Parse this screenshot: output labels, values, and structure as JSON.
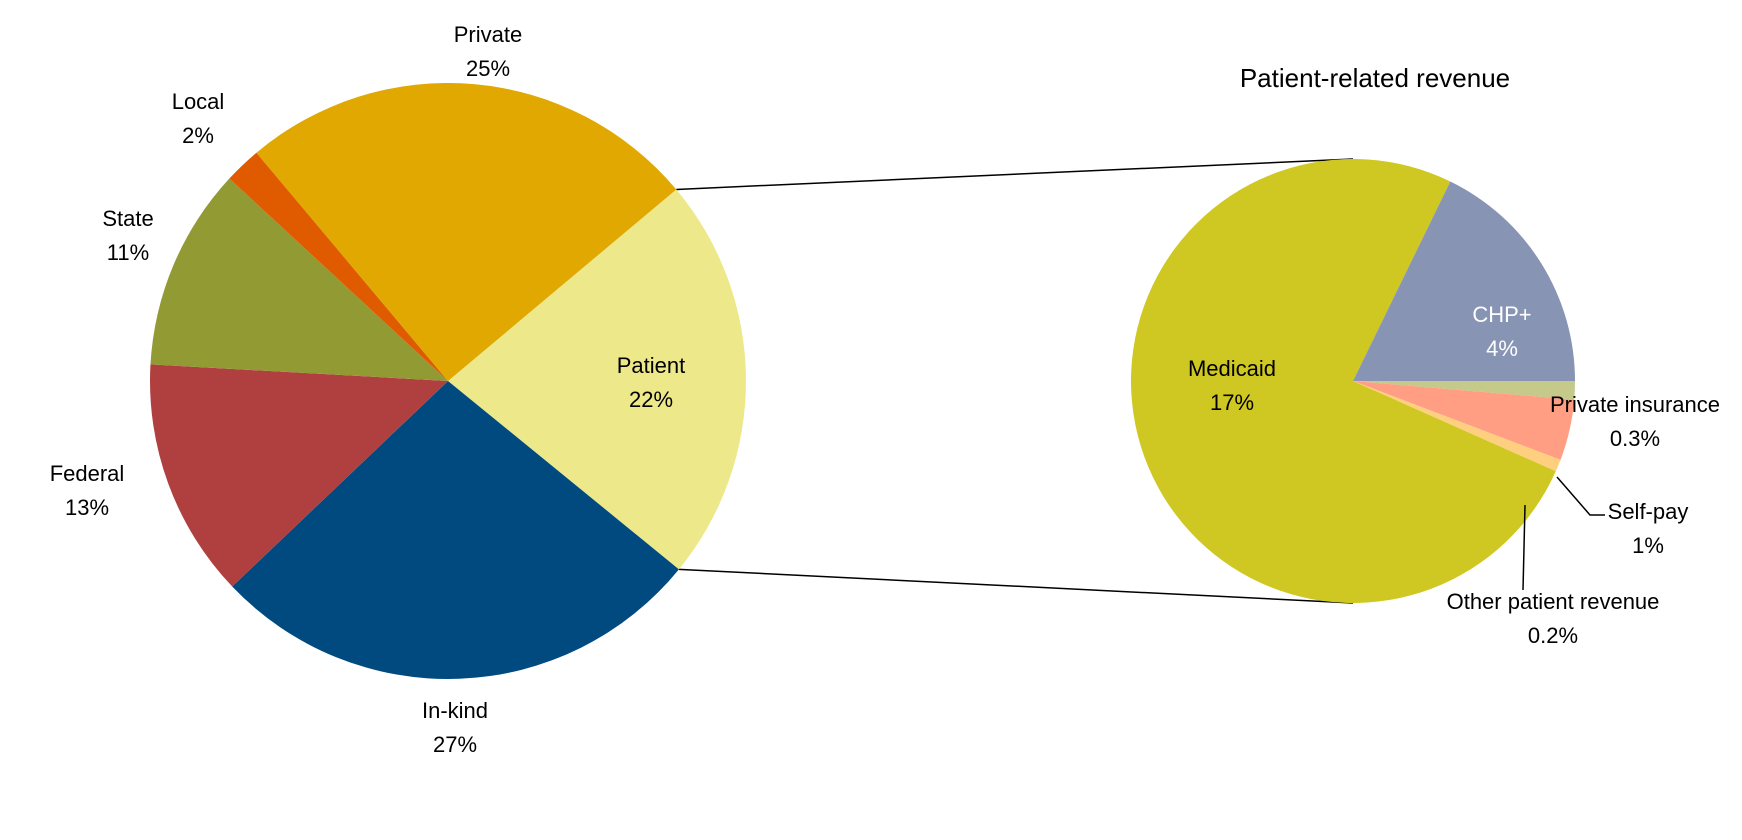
{
  "chart_data": [
    {
      "type": "pie",
      "categories": [
        "Patient",
        "In-kind",
        "Federal",
        "State",
        "Local",
        "Private"
      ],
      "values": [
        22,
        27,
        13,
        11,
        2,
        25
      ],
      "value_labels": [
        "22%",
        "27%",
        "13%",
        "11%",
        "2%",
        "25%"
      ],
      "colors": [
        "#ede98a",
        "#004a80",
        "#b04040",
        "#929a34",
        "#e05a00",
        "#e0a800"
      ]
    },
    {
      "type": "pie",
      "title": "Patient-related revenue",
      "categories": [
        "Private insurance",
        "Self-pay",
        "Other patient revenue",
        "Medicaid",
        "CHP+"
      ],
      "values": [
        0.3,
        1,
        0.2,
        17,
        4
      ],
      "value_labels": [
        "0.3%",
        "1%",
        "0.2%",
        "17%",
        "4%"
      ],
      "colors": [
        "#c5c98a",
        "#ff9e82",
        "#ffcf80",
        "#cfc822",
        "#8794b4"
      ]
    }
  ]
}
